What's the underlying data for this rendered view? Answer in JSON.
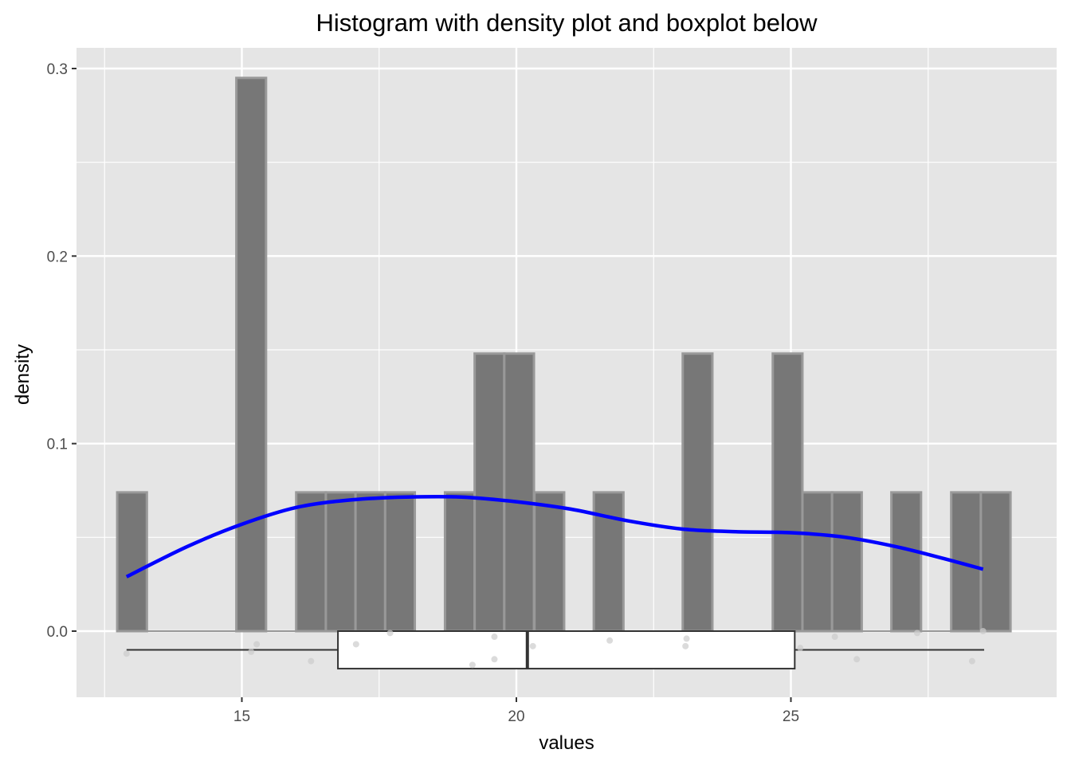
{
  "chart_data": {
    "type": "histogram",
    "title": "Histogram with density plot and boxplot below",
    "xlabel": "values",
    "ylabel": "density",
    "xlim": [
      12.5,
      29.5
    ],
    "ylim": [
      -0.035,
      0.31
    ],
    "x_ticks": [
      "15",
      "20",
      "25"
    ],
    "x_tick_values": [
      15,
      20,
      25
    ],
    "y_ticks": [
      "0.0",
      "0.1",
      "0.2",
      "0.3"
    ],
    "y_tick_values": [
      0.0,
      0.1,
      0.2,
      0.3
    ],
    "grid": true,
    "colors": {
      "panel": "#e5e5e5",
      "grid": "#ffffff",
      "bar_fill": "#777777",
      "bar_outline": "#999999",
      "density_line": "#0000ff",
      "box_fill": "#ffffff",
      "box_line": "#333333",
      "jitter_points": "#cccccc"
    },
    "histogram": {
      "bin_width": 0.54,
      "bins": [
        {
          "x": 13.0,
          "density": 0.074
        },
        {
          "x": 15.17,
          "density": 0.295
        },
        {
          "x": 16.26,
          "density": 0.074
        },
        {
          "x": 16.8,
          "density": 0.074
        },
        {
          "x": 17.34,
          "density": 0.074
        },
        {
          "x": 17.88,
          "density": 0.074
        },
        {
          "x": 18.97,
          "density": 0.074
        },
        {
          "x": 19.51,
          "density": 0.148
        },
        {
          "x": 20.05,
          "density": 0.148
        },
        {
          "x": 20.6,
          "density": 0.074
        },
        {
          "x": 21.68,
          "density": 0.074
        },
        {
          "x": 23.3,
          "density": 0.148
        },
        {
          "x": 24.94,
          "density": 0.148
        },
        {
          "x": 25.48,
          "density": 0.074
        },
        {
          "x": 26.02,
          "density": 0.074
        },
        {
          "x": 27.1,
          "density": 0.074
        },
        {
          "x": 28.19,
          "density": 0.074
        },
        {
          "x": 28.73,
          "density": 0.074
        }
      ]
    },
    "density_curve": {
      "x": [
        12.9,
        14.0,
        15.0,
        16.0,
        17.0,
        18.0,
        19.0,
        20.0,
        21.0,
        22.0,
        23.0,
        24.0,
        25.0,
        26.0,
        27.0,
        28.0,
        28.5
      ],
      "y": [
        0.029,
        0.045,
        0.057,
        0.066,
        0.07,
        0.0715,
        0.0715,
        0.069,
        0.065,
        0.059,
        0.0545,
        0.053,
        0.0525,
        0.05,
        0.0445,
        0.037,
        0.033
      ]
    },
    "boxplot": {
      "min": 12.9,
      "q1": 16.75,
      "median": 20.2,
      "q3": 25.07,
      "max": 28.52,
      "y_top": 0.0,
      "y_bottom": -0.02,
      "y_whisker": -0.01
    },
    "jitter_points": [
      {
        "x": 12.9,
        "y": -0.012
      },
      {
        "x": 15.17,
        "y": -0.011
      },
      {
        "x": 15.27,
        "y": -0.007
      },
      {
        "x": 16.26,
        "y": -0.016
      },
      {
        "x": 17.08,
        "y": -0.007
      },
      {
        "x": 17.7,
        "y": -0.001
      },
      {
        "x": 19.2,
        "y": -0.018
      },
      {
        "x": 19.6,
        "y": -0.015
      },
      {
        "x": 19.6,
        "y": -0.003
      },
      {
        "x": 20.3,
        "y": -0.008
      },
      {
        "x": 21.7,
        "y": -0.005
      },
      {
        "x": 23.1,
        "y": -0.004
      },
      {
        "x": 23.08,
        "y": -0.008
      },
      {
        "x": 25.17,
        "y": -0.009
      },
      {
        "x": 25.8,
        "y": -0.003
      },
      {
        "x": 26.2,
        "y": -0.015
      },
      {
        "x": 27.3,
        "y": -0.001
      },
      {
        "x": 28.3,
        "y": -0.016
      },
      {
        "x": 28.5,
        "y": 0.0
      }
    ]
  }
}
